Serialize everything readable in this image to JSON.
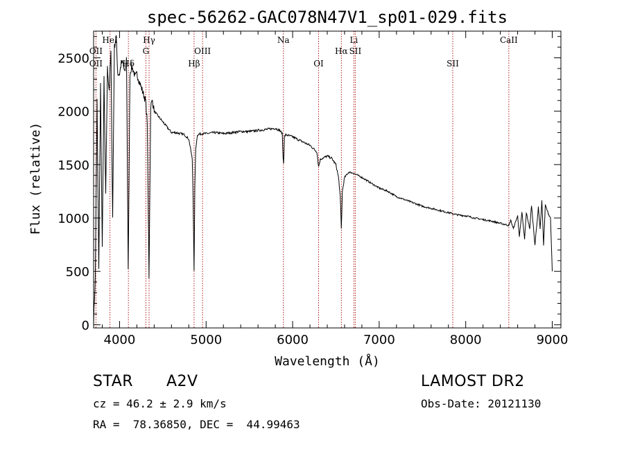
{
  "chart_data": {
    "type": "line",
    "title": "spec-56262-GAC078N47V1_sp01-029.fits",
    "xlabel": "Wavelength (Å)",
    "ylabel": "Flux (relative)",
    "xlim": [
      3700,
      9100
    ],
    "ylim": [
      -30,
      2750
    ],
    "xticks": [
      4000,
      5000,
      6000,
      7000,
      8000,
      9000
    ],
    "yticks": [
      0,
      500,
      1000,
      1500,
      2000,
      2500
    ],
    "grid": false,
    "colors": {
      "spectrum": "#000000",
      "lines": "#b01818"
    },
    "series": [
      {
        "x": [
          3700,
          3720,
          3740,
          3760,
          3780,
          3800,
          3820,
          3840,
          3860,
          3880,
          3900,
          3920,
          3940,
          3960,
          3980,
          4000,
          4020,
          4040,
          4060,
          4080,
          4100,
          4120,
          4140,
          4160,
          4180,
          4200,
          4220,
          4240,
          4260,
          4280,
          4300,
          4320,
          4340,
          4360,
          4380,
          4400,
          4450,
          4500,
          4550,
          4600,
          4650,
          4700,
          4750,
          4800,
          4820,
          4840,
          4850,
          4861,
          4870,
          4880,
          4900,
          4950,
          5000,
          5100,
          5200,
          5300,
          5400,
          5500,
          5600,
          5700,
          5800,
          5850,
          5880,
          5890,
          5896,
          5905,
          5920,
          6000,
          6100,
          6200,
          6280,
          6300,
          6320,
          6400,
          6450,
          6500,
          6530,
          6550,
          6563,
          6575,
          6600,
          6650,
          6700,
          6800,
          6900,
          7000,
          7100,
          7200,
          7300,
          7400,
          7500,
          7600,
          7700,
          7800,
          7900,
          8000,
          8100,
          8200,
          8300,
          8400,
          8450,
          8500,
          8520,
          8550,
          8600,
          8620,
          8650,
          8680,
          8700,
          8740,
          8760,
          8800,
          8840,
          8860,
          8880,
          8900,
          8920,
          8950,
          8980,
          9000
        ],
        "y": [
          30,
          450,
          2100,
          500,
          2250,
          700,
          2300,
          1200,
          2400,
          2200,
          2550,
          1000,
          2600,
          2700,
          2350,
          2350,
          2450,
          2450,
          2350,
          2500,
          500,
          2350,
          2420,
          2380,
          2320,
          2350,
          2300,
          2250,
          2200,
          2150,
          2100,
          1900,
          450,
          2050,
          2100,
          2000,
          1950,
          1900,
          1850,
          1800,
          1800,
          1790,
          1780,
          1740,
          1650,
          1550,
          1200,
          500,
          1300,
          1650,
          1780,
          1790,
          1790,
          1800,
          1790,
          1800,
          1810,
          1810,
          1820,
          1830,
          1840,
          1820,
          1790,
          1560,
          1520,
          1760,
          1780,
          1760,
          1720,
          1680,
          1620,
          1480,
          1550,
          1580,
          1560,
          1500,
          1380,
          1200,
          900,
          1250,
          1380,
          1430,
          1420,
          1380,
          1330,
          1280,
          1250,
          1200,
          1170,
          1140,
          1110,
          1090,
          1070,
          1050,
          1030,
          1020,
          1000,
          985,
          970,
          950,
          940,
          930,
          980,
          900,
          1020,
          830,
          1050,
          800,
          1050,
          900,
          1120,
          750,
          1100,
          900,
          1160,
          750,
          1120,
          1050,
          1000,
          500
        ]
      }
    ],
    "line_labels": [
      {
        "label": "OII",
        "x": 3727,
        "row": 3
      },
      {
        "label": "HeI",
        "x": 3889,
        "row": 1
      },
      {
        "label": "Hδ",
        "x": 4102,
        "row": 4
      },
      {
        "label": "Hγ",
        "x": 4341,
        "row": 1
      },
      {
        "label": "G",
        "x": 4304,
        "row": 2
      },
      {
        "label": "Hβ",
        "x": 4861,
        "row": 4
      },
      {
        "label": "OIII",
        "x": 4959,
        "row": 3
      },
      {
        "label": "Na",
        "x": 5893,
        "row": 1
      },
      {
        "label": "OI",
        "x": 6300,
        "row": 4
      },
      {
        "label": "Hα",
        "x": 6563,
        "row": 3
      },
      {
        "label": "Li",
        "x": 6708,
        "row": 1
      },
      {
        "label": "SII",
        "x": 6724,
        "row": 3
      },
      {
        "label": "SII",
        "x": 7850,
        "row": 4
      },
      {
        "label": "CaII",
        "x": 8498,
        "row": 1
      }
    ],
    "extra_labels": [
      {
        "label": "OII",
        "x": 3727,
        "row": 2
      }
    ]
  },
  "info": {
    "object_class": "STAR",
    "subclass": "A2V",
    "survey": "LAMOST DR2",
    "redshift": "cz = 46.2 ± 2.9 km/s",
    "obs_date": "Obs-Date: 20121130",
    "coords": "RA =  78.36850, DEC =  44.99463"
  }
}
